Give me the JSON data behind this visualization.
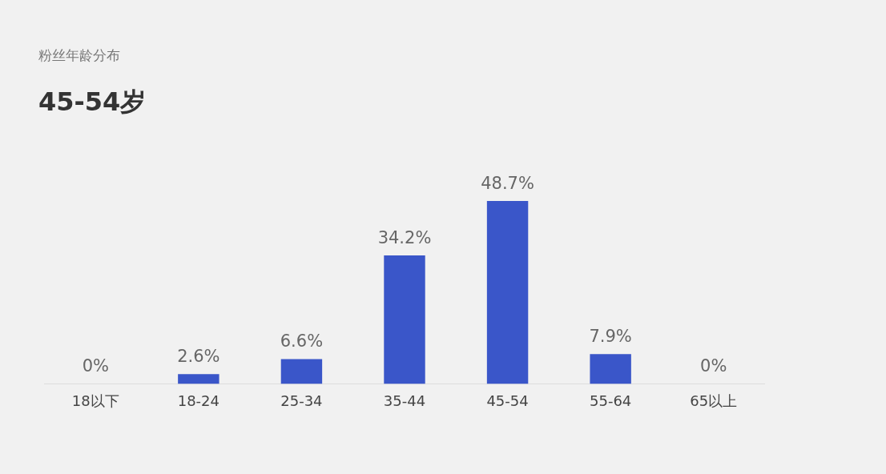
{
  "chart_data": {
    "type": "bar",
    "title": "粉丝年龄分布",
    "subtitle": "45-54岁",
    "categories": [
      "18以下",
      "18-24",
      "25-34",
      "35-44",
      "45-54",
      "55-64",
      "65以上"
    ],
    "values": [
      0,
      2.6,
      6.6,
      34.2,
      48.7,
      7.9,
      0
    ],
    "value_labels": [
      "0%",
      "2.6%",
      "6.6%",
      "34.2%",
      "48.7%",
      "7.9%",
      "0%"
    ],
    "color": "#3a56c9",
    "grid": false,
    "legend": false
  }
}
